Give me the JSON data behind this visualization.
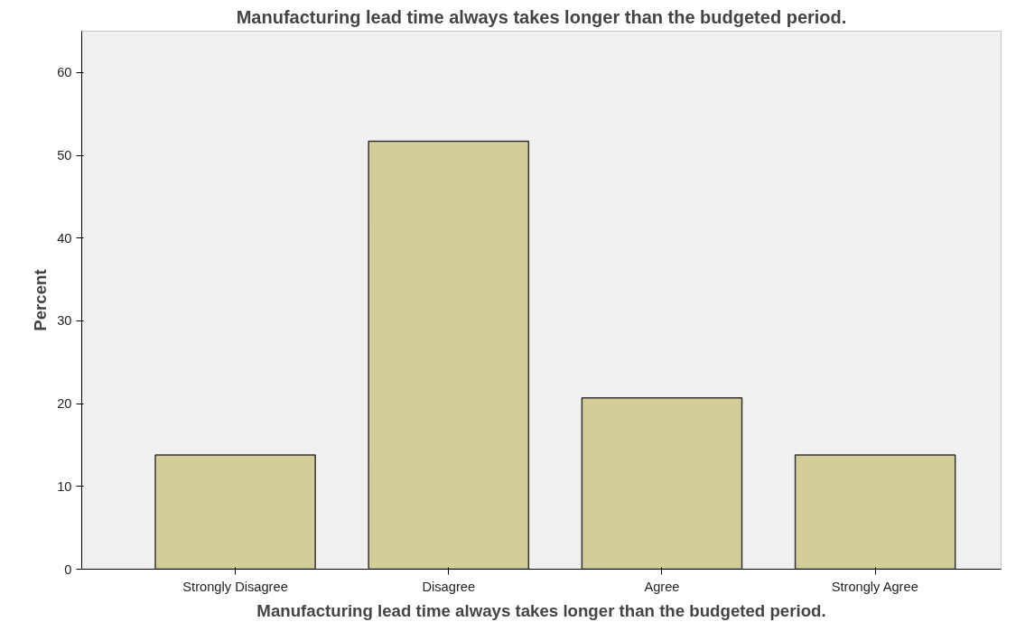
{
  "chart_data": {
    "type": "bar",
    "title": "Manufacturing lead time always takes longer than the budgeted period.",
    "xlabel": "Manufacturing lead time always takes longer than the budgeted period.",
    "ylabel": "Percent",
    "categories": [
      "Strongly Disagree",
      "Disagree",
      "Agree",
      "Strongly Agree"
    ],
    "values": [
      13.8,
      51.7,
      20.7,
      13.8
    ],
    "color": "#d3ce97",
    "ylim": [
      0,
      65
    ],
    "yticks": [
      0,
      10,
      20,
      30,
      40,
      50,
      60
    ],
    "grid": false
  }
}
